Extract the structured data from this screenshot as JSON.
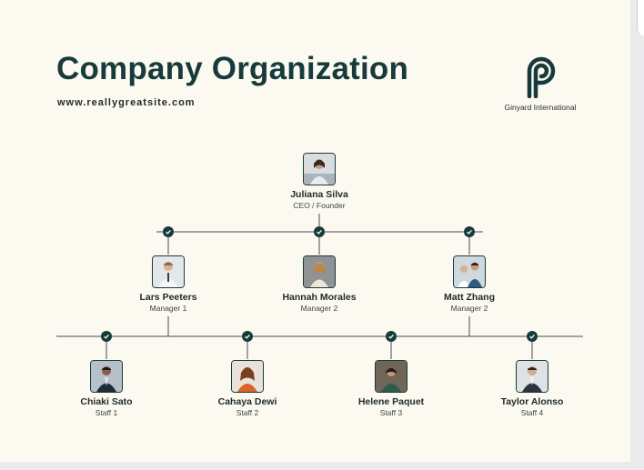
{
  "header": {
    "title": "Company Organization",
    "website": "www.reallygreatsite.com"
  },
  "logo": {
    "icon": "p-monogram-logo",
    "name": "Ginyard International"
  },
  "colors": {
    "accent": "#173b3b",
    "background": "#fcf9f1",
    "line": "#4a4a4a"
  },
  "org": {
    "ceo": {
      "name": "Juliana Silva",
      "role": "CEO / Founder"
    },
    "managers": [
      {
        "name": "Lars Peeters",
        "role": "Manager 1"
      },
      {
        "name": "Hannah Morales",
        "role": "Manager 2"
      },
      {
        "name": "Matt Zhang",
        "role": "Manager 2"
      }
    ],
    "staff": [
      {
        "name": "Chiaki Sato",
        "role": "Staff 1"
      },
      {
        "name": "Cahaya Dewi",
        "role": "Staff 2"
      },
      {
        "name": "Helene Paquet",
        "role": "Staff 3"
      },
      {
        "name": "Taylor Alonso",
        "role": "Staff 4"
      }
    ]
  }
}
